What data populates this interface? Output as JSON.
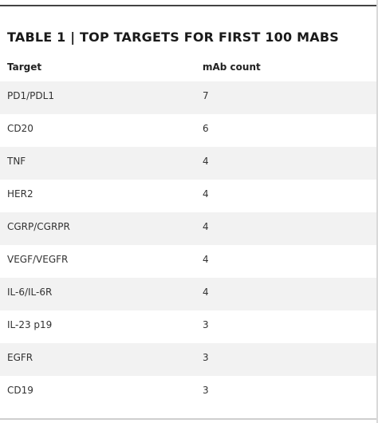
{
  "table": {
    "title": "TABLE 1 | TOP TARGETS FOR FIRST 100 MABS",
    "headers": [
      "Target",
      "mAb count"
    ],
    "rows": [
      [
        "PD1/PDL1",
        "7"
      ],
      [
        "CD20",
        "6"
      ],
      [
        "TNF",
        "4"
      ],
      [
        "HER2",
        "4"
      ],
      [
        "CGRP/CGRPR",
        "4"
      ],
      [
        "VEGF/VEGFR",
        "4"
      ],
      [
        "IL-6/IL-6R",
        "4"
      ],
      [
        "IL-23 p19",
        "3"
      ],
      [
        "EGFR",
        "3"
      ],
      [
        "CD19",
        "3"
      ]
    ]
  },
  "colors": {
    "row_stripe": "#f2f2f2",
    "rule": "#444444"
  }
}
